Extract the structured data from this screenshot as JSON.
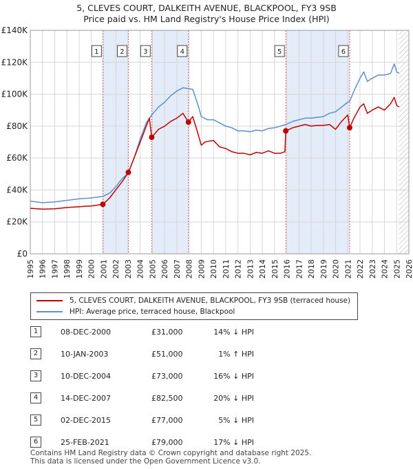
{
  "title": "5, CLEVES COURT, DALKEITH AVENUE, BLACKPOOL, FY3 9SB",
  "subtitle": "Price paid vs. HM Land Registry's House Price Index (HPI)",
  "colors": {
    "property": "#c00000",
    "hpi": "#5b8fd0",
    "band": "#e3ecf8",
    "marker_line": "#e06060"
  },
  "legend": {
    "property": "5, CLEVES COURT, DALKEITH AVENUE, BLACKPOOL, FY3 9SB (terraced house)",
    "hpi": "HPI: Average price, terraced house, Blackpool"
  },
  "transactions": [
    {
      "num": "1",
      "date": "08-DEC-2000",
      "price": "£31,000",
      "hpi": "14% ↓ HPI"
    },
    {
      "num": "2",
      "date": "10-JAN-2003",
      "price": "£51,000",
      "hpi": "1% ↑ HPI"
    },
    {
      "num": "3",
      "date": "10-DEC-2004",
      "price": "£73,000",
      "hpi": "16% ↓ HPI"
    },
    {
      "num": "4",
      "date": "14-DEC-2007",
      "price": "£82,500",
      "hpi": "20% ↓ HPI"
    },
    {
      "num": "5",
      "date": "02-DEC-2015",
      "price": "£77,000",
      "hpi": "5% ↓ HPI"
    },
    {
      "num": "6",
      "date": "25-FEB-2021",
      "price": "£79,000",
      "hpi": "17% ↓ HPI"
    }
  ],
  "footer": {
    "line1": "Contains HM Land Registry data © Crown copyright and database right 2025.",
    "line2": "This data is licensed under the Open Government Licence v3.0."
  },
  "chart_data": {
    "type": "line",
    "title": "5, CLEVES COURT, DALKEITH AVENUE, BLACKPOOL, FY3 9SB",
    "subtitle": "Price paid vs. HM Land Registry's House Price Index (HPI)",
    "xlim": [
      1995,
      2026
    ],
    "ylim": [
      0,
      140000
    ],
    "x_ticks": [
      1995,
      1996,
      1997,
      1998,
      1999,
      2000,
      2001,
      2002,
      2003,
      2004,
      2005,
      2006,
      2007,
      2008,
      2009,
      2010,
      2011,
      2012,
      2013,
      2014,
      2015,
      2016,
      2017,
      2018,
      2019,
      2020,
      2021,
      2022,
      2023,
      2024,
      2025,
      2026
    ],
    "y_ticks": [
      0,
      20000,
      40000,
      60000,
      80000,
      100000,
      120000,
      140000
    ],
    "y_tick_labels": [
      "£0",
      "£20K",
      "£40K",
      "£60K",
      "£80K",
      "£100K",
      "£120K",
      "£140K"
    ],
    "grid": true,
    "sale_bands": [
      [
        2000.94,
        2003.03
      ],
      [
        2004.94,
        2007.95
      ],
      [
        2015.92,
        2021.15
      ]
    ],
    "hatch_from": 2025.2,
    "series": [
      {
        "name": "5, CLEVES COURT, DALKEITH AVENUE, BLACKPOOL, FY3 9SB (terraced house)",
        "x": [
          1995.0,
          1996.0,
          1997.0,
          1998.0,
          1999.0,
          2000.0,
          2000.94,
          2001.5,
          2002.0,
          2002.5,
          2003.03,
          2003.5,
          2004.0,
          2004.5,
          2004.75,
          2004.94,
          2005.5,
          2006.0,
          2006.5,
          2007.0,
          2007.5,
          2007.95,
          2008.3,
          2008.7,
          2009.0,
          2009.3,
          2009.6,
          2010.0,
          2010.5,
          2011.0,
          2011.5,
          2012.0,
          2012.5,
          2013.0,
          2013.5,
          2014.0,
          2014.5,
          2015.0,
          2015.5,
          2015.85,
          2015.92,
          2016.5,
          2017.0,
          2017.5,
          2018.0,
          2018.5,
          2019.0,
          2019.5,
          2020.0,
          2020.5,
          2021.0,
          2021.15,
          2021.5,
          2022.0,
          2022.3,
          2022.6,
          2023.0,
          2023.5,
          2024.0,
          2024.5,
          2024.8,
          2025.0,
          2025.2
        ],
        "values": [
          28500,
          28000,
          28200,
          29000,
          29500,
          30000,
          31000,
          35000,
          40000,
          45000,
          51000,
          60000,
          70000,
          80000,
          85000,
          73000,
          78000,
          80000,
          83000,
          85000,
          88000,
          82500,
          86000,
          76000,
          68000,
          70000,
          70500,
          71000,
          67000,
          66000,
          64000,
          63000,
          63000,
          62000,
          63500,
          63000,
          64500,
          63000,
          63000,
          64000,
          77000,
          79000,
          80000,
          81000,
          80000,
          80500,
          80500,
          81000,
          78000,
          83000,
          87000,
          79000,
          85000,
          92000,
          94000,
          88000,
          90000,
          92000,
          90000,
          94000,
          98000,
          93000,
          92000
        ]
      },
      {
        "name": "HPI: Average price, terraced house, Blackpool",
        "x": [
          1995.0,
          1996.0,
          1997.0,
          1998.0,
          1999.0,
          2000.0,
          2000.94,
          2001.5,
          2002.0,
          2002.5,
          2003.03,
          2003.5,
          2004.0,
          2004.5,
          2004.94,
          2005.5,
          2006.0,
          2006.5,
          2007.0,
          2007.5,
          2007.95,
          2008.3,
          2008.7,
          2009.0,
          2009.5,
          2010.0,
          2010.5,
          2011.0,
          2011.5,
          2012.0,
          2012.5,
          2013.0,
          2013.5,
          2014.0,
          2014.5,
          2015.0,
          2015.5,
          2015.92,
          2016.5,
          2017.0,
          2017.5,
          2018.0,
          2018.5,
          2019.0,
          2019.5,
          2020.0,
          2020.5,
          2021.0,
          2021.15,
          2021.5,
          2022.0,
          2022.3,
          2022.6,
          2023.0,
          2023.5,
          2024.0,
          2024.5,
          2024.8,
          2025.0,
          2025.2
        ],
        "values": [
          33000,
          32000,
          32500,
          33500,
          34500,
          35000,
          36000,
          38000,
          42000,
          47000,
          50500,
          60000,
          72000,
          82000,
          87000,
          92000,
          95000,
          99000,
          102000,
          104000,
          103500,
          103000,
          94000,
          86000,
          84000,
          84000,
          82000,
          80000,
          79000,
          77000,
          77000,
          76500,
          77500,
          77000,
          78500,
          79000,
          80000,
          81000,
          83000,
          84000,
          85000,
          85000,
          85500,
          86000,
          88000,
          89000,
          92000,
          95000,
          95500,
          102000,
          110000,
          114000,
          108000,
          110000,
          112000,
          112000,
          113000,
          119000,
          114000,
          113000
        ]
      }
    ],
    "markers": [
      {
        "label": "1",
        "x": 2000.94,
        "y": 31000
      },
      {
        "label": "2",
        "x": 2003.03,
        "y": 51000
      },
      {
        "label": "3",
        "x": 2004.94,
        "y": 73000
      },
      {
        "label": "4",
        "x": 2007.95,
        "y": 82500
      },
      {
        "label": "5",
        "x": 2015.92,
        "y": 77000
      },
      {
        "label": "6",
        "x": 2021.15,
        "y": 79000
      }
    ]
  }
}
